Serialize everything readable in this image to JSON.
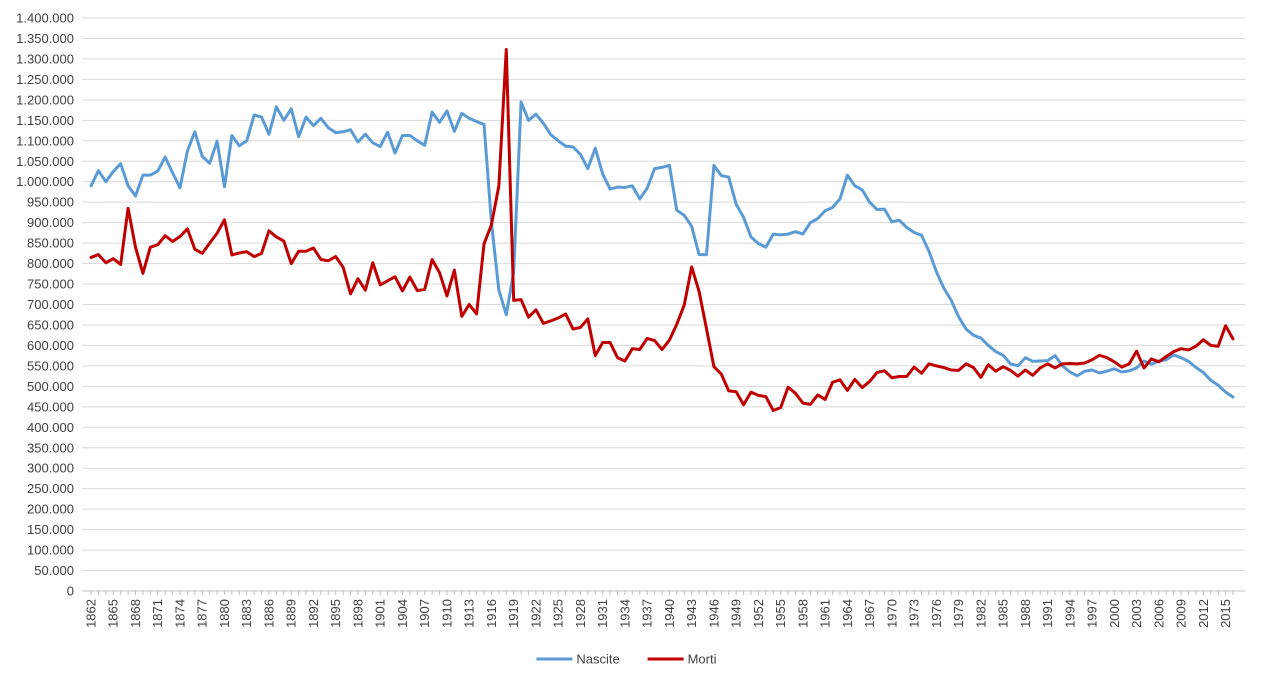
{
  "chart_data": {
    "type": "line",
    "xlabel": "",
    "ylabel": "",
    "ylim": [
      0,
      1400000
    ],
    "y_tick_step": 50000,
    "y_tick_labels": [
      "0",
      "50.000",
      "100.000",
      "150.000",
      "200.000",
      "250.000",
      "300.000",
      "350.000",
      "400.000",
      "450.000",
      "500.000",
      "550.000",
      "600.000",
      "650.000",
      "700.000",
      "750.000",
      "800.000",
      "850.000",
      "900.000",
      "950.000",
      "1.000.000",
      "1.050.000",
      "1.100.000",
      "1.150.000",
      "1.200.000",
      "1.250.000",
      "1.300.000",
      "1.350.000",
      "1.400.000"
    ],
    "x_start": 1862,
    "x_end": 2016,
    "x_tick_labels": [
      "1862",
      "1865",
      "1868",
      "1871",
      "1874",
      "1877",
      "1880",
      "1883",
      "1886",
      "1889",
      "1892",
      "1895",
      "1898",
      "1901",
      "1904",
      "1907",
      "1910",
      "1913",
      "1916",
      "1919",
      "1922",
      "1925",
      "1928",
      "1931",
      "1934",
      "1937",
      "1940",
      "1943",
      "1946",
      "1949",
      "1952",
      "1955",
      "1958",
      "1961",
      "1964",
      "1967",
      "1970",
      "1973",
      "1976",
      "1979",
      "1982",
      "1985",
      "1988",
      "1991",
      "1994",
      "1997",
      "2000",
      "2003",
      "2006",
      "2009",
      "2012",
      "2015"
    ],
    "grid": true,
    "legend_position": "bottom",
    "series": [
      {
        "name": "Nascite",
        "color": "#5B9BD5",
        "values": [
          990000,
          1027000,
          1000000,
          1025000,
          1044000,
          990000,
          965000,
          1016000,
          1016000,
          1026000,
          1060000,
          1022000,
          985000,
          1075000,
          1122000,
          1062000,
          1045000,
          1099000,
          988000,
          1113000,
          1088000,
          1100000,
          1163000,
          1158000,
          1116000,
          1183000,
          1150000,
          1178000,
          1110000,
          1158000,
          1137000,
          1155000,
          1132000,
          1120000,
          1122000,
          1127000,
          1097000,
          1116000,
          1095000,
          1086000,
          1121000,
          1070000,
          1113000,
          1113000,
          1100000,
          1089000,
          1170000,
          1145000,
          1173000,
          1123000,
          1167000,
          1155000,
          1147000,
          1140000,
          900000,
          735000,
          675000,
          780000,
          1195000,
          1150000,
          1165000,
          1143000,
          1115000,
          1100000,
          1087000,
          1085000,
          1067000,
          1032000,
          1082000,
          1019000,
          982000,
          987000,
          986000,
          990000,
          958000,
          984000,
          1032000,
          1035000,
          1040000,
          930000,
          918000,
          891000,
          822000,
          822000,
          1040000,
          1015000,
          1011000,
          945000,
          913000,
          865000,
          849000,
          840000,
          872000,
          870000,
          872000,
          878000,
          872000,
          900000,
          910000,
          929000,
          937000,
          958000,
          1016000,
          990000,
          980000,
          950000,
          932000,
          933000,
          902000,
          906000,
          888000,
          876000,
          869000,
          830000,
          780000,
          740000,
          710000,
          670000,
          640000,
          625000,
          618000,
          600000,
          585000,
          576000,
          555000,
          550000,
          570000,
          561000,
          562000,
          563000,
          575000,
          550000,
          535000,
          526000,
          537000,
          540000,
          533000,
          537000,
          543000,
          535000,
          538000,
          545000,
          562000,
          554000,
          562000,
          565000,
          577000,
          570000,
          561000,
          546000,
          534000,
          515000,
          503000,
          486000,
          474000
        ],
        "labels_visible": false
      },
      {
        "name": "Morti",
        "color": "#C00000",
        "values": [
          815000,
          822000,
          802000,
          812000,
          798000,
          935000,
          840000,
          776000,
          840000,
          846000,
          868000,
          854000,
          866000,
          885000,
          835000,
          825000,
          850000,
          874000,
          907000,
          821000,
          826000,
          829000,
          817000,
          825000,
          880000,
          865000,
          855000,
          800000,
          830000,
          830000,
          838000,
          810000,
          807000,
          817000,
          791000,
          726000,
          763000,
          735000,
          802000,
          748000,
          758000,
          768000,
          733000,
          767000,
          734000,
          737000,
          810000,
          778000,
          721000,
          784000,
          671000,
          700000,
          677000,
          848000,
          895000,
          990000,
          1323000,
          710000,
          712000,
          669000,
          687000,
          654000,
          660000,
          667000,
          677000,
          640000,
          644000,
          665000,
          575000,
          607000,
          607000,
          570000,
          562000,
          592000,
          590000,
          617000,
          612000,
          590000,
          613000,
          652000,
          699000,
          792000,
          732000,
          641000,
          548000,
          530000,
          489000,
          487000,
          455000,
          486000,
          478000,
          475000,
          441000,
          448000,
          498000,
          483000,
          459000,
          456000,
          479000,
          468000,
          510000,
          516000,
          490000,
          517000,
          497000,
          512000,
          534000,
          538000,
          521000,
          524000,
          524000,
          547000,
          532000,
          555000,
          550000,
          546000,
          540000,
          539000,
          555000,
          546000,
          522000,
          553000,
          537000,
          548000,
          539000,
          525000,
          540000,
          527000,
          545000,
          555000,
          545000,
          555000,
          556000,
          555000,
          557000,
          565000,
          576000,
          570000,
          560000,
          547000,
          555000,
          586000,
          545000,
          567000,
          560000,
          573000,
          585000,
          592000,
          589000,
          598000,
          614000,
          600000,
          598000,
          648000,
          616000
        ],
        "labels_visible": false
      }
    ]
  }
}
